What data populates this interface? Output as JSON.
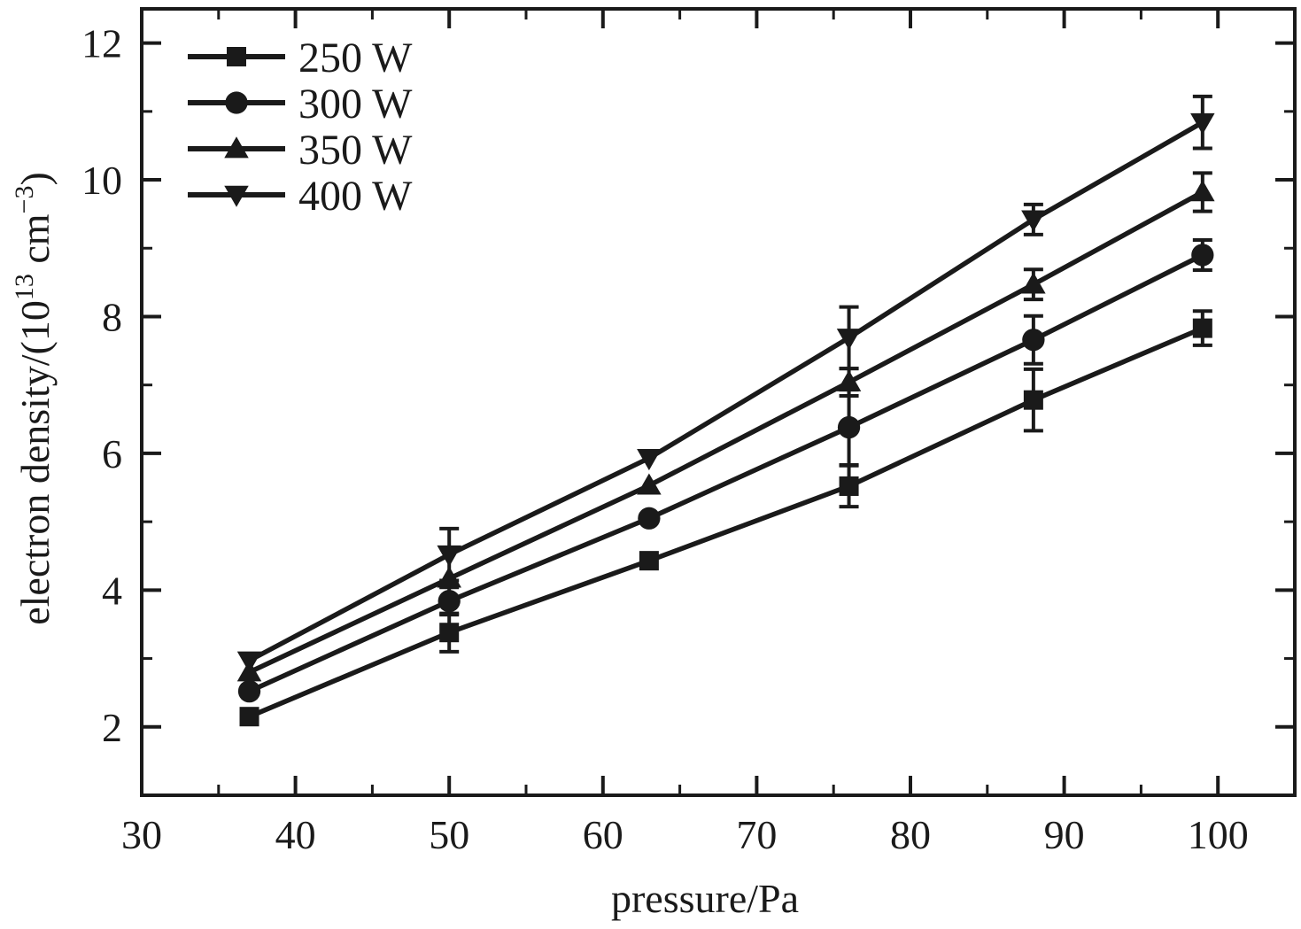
{
  "chart_data": {
    "type": "line",
    "xlabel": "pressure/Pa",
    "ylabel": {
      "prefix": "electron density/(10",
      "sup1": "13",
      "mid": " cm",
      "sup2": "−3",
      "suffix": ")"
    },
    "xlim": [
      30,
      105
    ],
    "ylim": [
      1,
      12.5
    ],
    "xticks": [
      30,
      40,
      50,
      60,
      70,
      80,
      90,
      100
    ],
    "yticks": [
      2,
      4,
      6,
      8,
      10,
      12
    ],
    "grid": false,
    "legend_position": "top-left",
    "x": [
      37,
      50,
      63,
      76,
      88,
      99
    ],
    "series": [
      {
        "name": "250 W",
        "marker": "square",
        "values": [
          2.15,
          3.38,
          4.43,
          5.52,
          6.78,
          7.83
        ],
        "errors": [
          0,
          0.28,
          0,
          0.3,
          0.45,
          0.25
        ]
      },
      {
        "name": "300 W",
        "marker": "circle",
        "values": [
          2.52,
          3.84,
          5.05,
          6.38,
          7.66,
          8.9
        ],
        "errors": [
          0,
          0.2,
          0,
          0.55,
          0.35,
          0.22
        ]
      },
      {
        "name": "350 W",
        "marker": "triangle-up",
        "values": [
          2.8,
          4.17,
          5.53,
          7.04,
          8.47,
          9.82
        ],
        "errors": [
          0,
          0,
          0,
          0.2,
          0.22,
          0.28
        ]
      },
      {
        "name": "400 W",
        "marker": "triangle-down",
        "values": [
          2.97,
          4.52,
          5.93,
          7.69,
          9.42,
          10.84
        ],
        "errors": [
          0,
          0.38,
          0,
          0.45,
          0.22,
          0.38
        ]
      }
    ],
    "colors": {
      "line": "#1a1a1a",
      "background": "#ffffff"
    }
  }
}
